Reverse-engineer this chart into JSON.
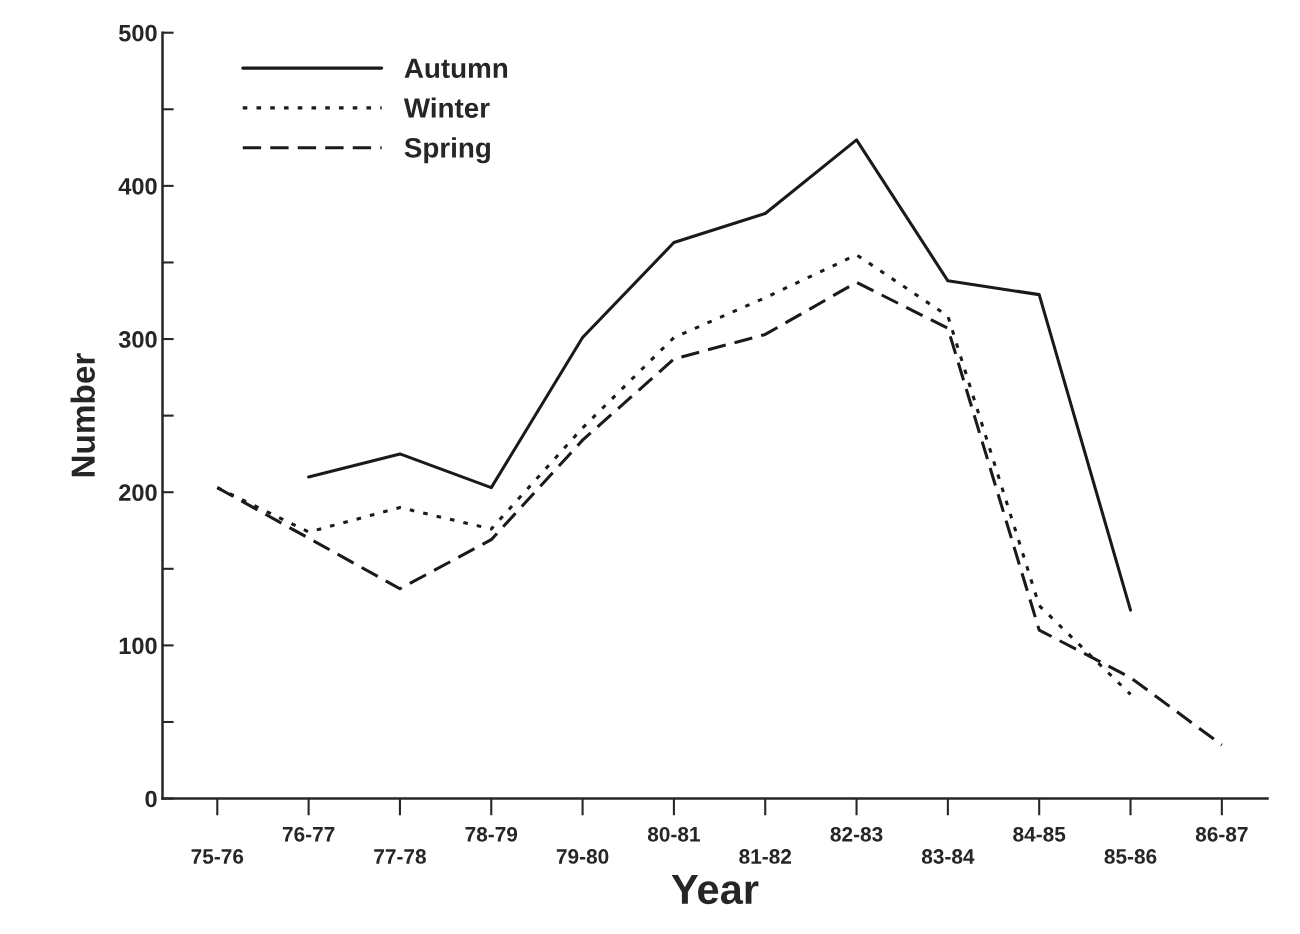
{
  "chart_data": {
    "type": "line",
    "xlabel": "Year",
    "ylabel": "Number",
    "categories": [
      "75-76",
      "76-77",
      "77-78",
      "78-79",
      "79-80",
      "80-81",
      "81-82",
      "82-83",
      "83-84",
      "84-85",
      "85-86",
      "86-87"
    ],
    "series": [
      {
        "name": "Autumn",
        "color": "#1a1a1a",
        "line_style": "solid",
        "values": [
          null,
          210,
          225,
          203,
          301,
          363,
          382,
          430,
          338,
          329,
          123,
          null
        ]
      },
      {
        "name": "Winter",
        "color": "#1a1a1a",
        "line_style": "dotted",
        "values": [
          203,
          174,
          190,
          176,
          242,
          301,
          327,
          355,
          315,
          126,
          68,
          null
        ]
      },
      {
        "name": "Spring",
        "color": "#1a1a1a",
        "line_style": "dashed",
        "values": [
          203,
          170,
          137,
          169,
          234,
          287,
          303,
          337,
          307,
          110,
          79,
          35
        ]
      }
    ],
    "ylim": [
      0,
      500
    ],
    "yticks": [
      0,
      {
        "value": 50,
        "label": null
      },
      100,
      {
        "value": 150,
        "label": null
      },
      200,
      {
        "value": 250,
        "label": null
      },
      300,
      {
        "value": 350,
        "label": null
      },
      400,
      {
        "value": 450,
        "label": null
      },
      500
    ],
    "legend": "top left",
    "grid": false,
    "marker": "none"
  }
}
